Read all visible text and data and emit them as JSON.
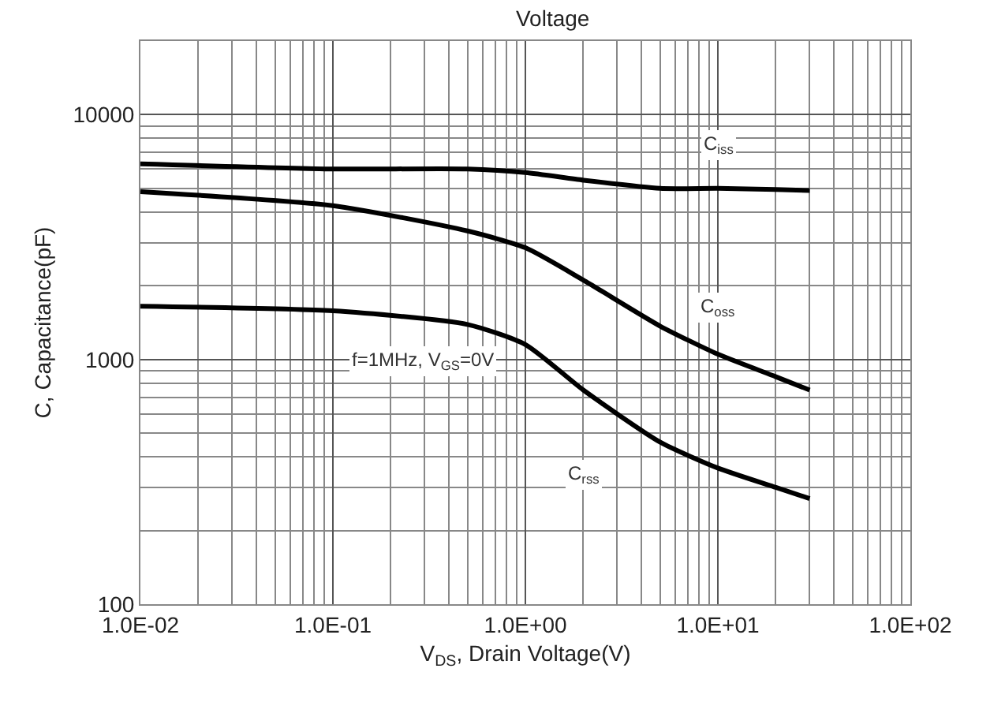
{
  "chart_data": {
    "type": "line",
    "title": "Voltage",
    "xlabel": "V$_{DS}$, Drain Voltage(V)",
    "ylabel": "C, Capacitance(pF)",
    "log": "xy",
    "grid": true,
    "legend": false,
    "marker": "none",
    "line_style": "solid",
    "xlim": [
      0.01,
      100
    ],
    "ylim": [
      100,
      20000
    ],
    "xticks": [
      {
        "value": 0.01,
        "label": "1.0E-02"
      },
      {
        "value": 0.1,
        "label": "1.0E-01"
      },
      {
        "value": 1,
        "label": "1.0E+00"
      },
      {
        "value": 10,
        "label": "1.0E+01"
      },
      {
        "value": 100,
        "label": "1.0E+02"
      }
    ],
    "yticks": [
      100,
      1000,
      10000
    ],
    "x": [
      0.01,
      0.1,
      0.5,
      1,
      2,
      5,
      10,
      20,
      30
    ],
    "series": [
      {
        "name": "C$_{iss}$",
        "color": "#000000",
        "values": [
          6300,
          6000,
          6000,
          5800,
          5400,
          5000,
          5000,
          4950,
          4900
        ]
      },
      {
        "name": "C$_{oss}$",
        "color": "#000000",
        "values": [
          4850,
          4250,
          3350,
          2860,
          2110,
          1370,
          1050,
          850,
          750
        ]
      },
      {
        "name": "C$_{rss}$",
        "color": "#000000",
        "values": [
          1650,
          1580,
          1390,
          1150,
          750,
          460,
          360,
          300,
          270
        ]
      }
    ],
    "annotations": [
      "f=1MHz, V$_{GS}$=0V"
    ]
  }
}
